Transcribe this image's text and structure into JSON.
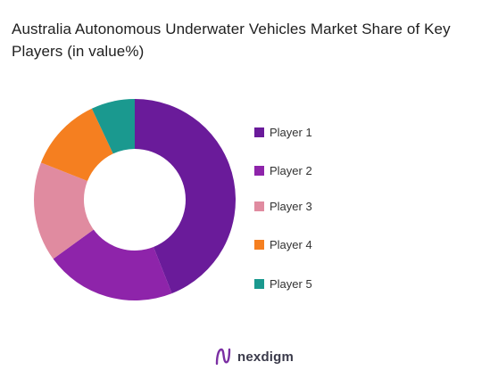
{
  "title": "Australia Autonomous Underwater Vehicles Market Share of Key Players (in value%)",
  "brand": {
    "name": "nexdigm"
  },
  "chart_data": {
    "type": "pie",
    "variant": "donut",
    "title": "Australia Autonomous Underwater Vehicles Market Share of Key Players (in value%)",
    "categories": [
      "Player 1",
      "Player 2",
      "Player 3",
      "Player 4",
      "Player 5"
    ],
    "values": [
      44,
      21,
      16,
      12,
      7
    ],
    "colors": [
      "#6a1b9a",
      "#8e24aa",
      "#e08ba0",
      "#f57f20",
      "#1a998f"
    ],
    "legend_position": "right"
  }
}
